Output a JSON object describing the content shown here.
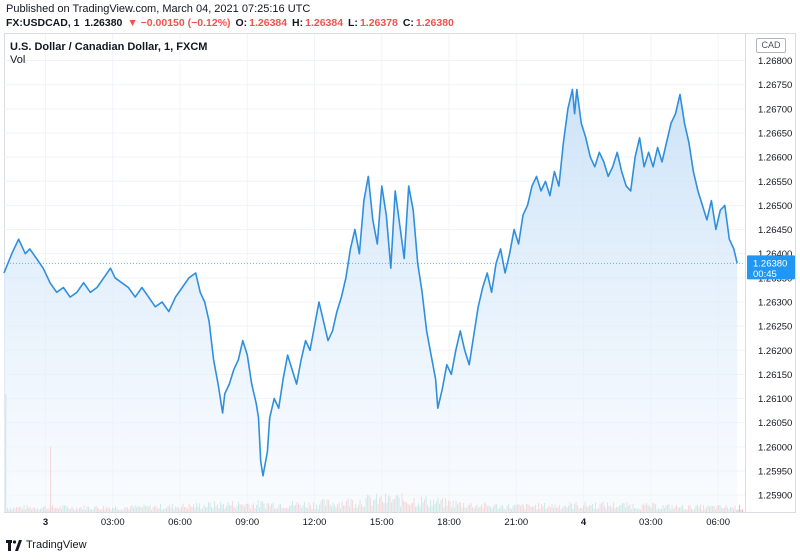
{
  "published": "Published on TradingView.com, March 04, 2021 07:25:16 UTC",
  "header": {
    "symbol": "FX:USDCAD, 1",
    "last": "1.26380",
    "change": "▼ −0.00150 (−0.12%)",
    "o_label": "O:",
    "o": "1.26384",
    "h_label": "H:",
    "h": "1.26384",
    "l_label": "L:",
    "l": "1.26378",
    "c_label": "C:",
    "c": "1.26380"
  },
  "chart": {
    "title": "U.S. Dollar / Canadian Dollar, 1, FXCM",
    "vol_label": "Vol",
    "currency": "CAD",
    "price_badge": "1.26380",
    "countdown": "00:45"
  },
  "footer": {
    "brand": "TradingView"
  },
  "colors": {
    "line": "#2f8fdf",
    "area_top": "#c7e0f7",
    "area_bottom": "#f3f8fe",
    "badge": "#2196f3",
    "vol_up": "#8ecfc6",
    "vol_down": "#f1a7a3",
    "negative": "#ef5350"
  },
  "chart_data": {
    "type": "area",
    "title": "U.S. Dollar / Canadian Dollar, 1, FXCM",
    "y_axis": {
      "ticks": [
        1.259,
        1.2595,
        1.26,
        1.2605,
        1.261,
        1.2615,
        1.262,
        1.2625,
        1.263,
        1.2635,
        1.264,
        1.2645,
        1.265,
        1.2655,
        1.266,
        1.2665,
        1.267,
        1.2675,
        1.268
      ],
      "tick_labels": [
        "1.25900",
        "1.25950",
        "1.26000",
        "1.26050",
        "1.26100",
        "1.26150",
        "1.26200",
        "1.26250",
        "1.26300",
        "1.26350",
        "1.26400",
        "1.26450",
        "1.26500",
        "1.26550",
        "1.26600",
        "1.26650",
        "1.26700",
        "1.26750",
        "1.26800"
      ],
      "range": [
        1.25865,
        1.26855
      ]
    },
    "x_axis": {
      "tick_labels": [
        "3",
        "03:00",
        "06:00",
        "09:00",
        "12:00",
        "15:00",
        "18:00",
        "21:00",
        "4",
        "03:00",
        "06:00"
      ],
      "tick_hours": [
        0,
        3,
        6,
        9,
        12,
        15,
        18,
        21,
        24,
        27,
        30
      ],
      "range_hours": [
        -1.85,
        31.2
      ]
    },
    "series": [
      {
        "values": [
          [
            -1.85,
            1.2636
          ],
          [
            -1.5,
            1.264
          ],
          [
            -1.2,
            1.2643
          ],
          [
            -0.9,
            1.264
          ],
          [
            -0.7,
            1.2641
          ],
          [
            -0.4,
            1.2639
          ],
          [
            -0.1,
            1.2637
          ],
          [
            0.2,
            1.2634
          ],
          [
            0.5,
            1.2632
          ],
          [
            0.8,
            1.2633
          ],
          [
            1.1,
            1.2631
          ],
          [
            1.4,
            1.2632
          ],
          [
            1.7,
            1.2634
          ],
          [
            2.0,
            1.2632
          ],
          [
            2.3,
            1.2633
          ],
          [
            2.6,
            1.2635
          ],
          [
            2.9,
            1.2637
          ],
          [
            3.1,
            1.2635
          ],
          [
            3.4,
            1.2634
          ],
          [
            3.7,
            1.2633
          ],
          [
            4.0,
            1.2631
          ],
          [
            4.3,
            1.2633
          ],
          [
            4.6,
            1.2631
          ],
          [
            4.9,
            1.2629
          ],
          [
            5.2,
            1.263
          ],
          [
            5.5,
            1.2628
          ],
          [
            5.8,
            1.2631
          ],
          [
            6.1,
            1.2633
          ],
          [
            6.4,
            1.2635
          ],
          [
            6.7,
            1.2636
          ],
          [
            6.9,
            1.2632
          ],
          [
            7.1,
            1.263
          ],
          [
            7.3,
            1.2626
          ],
          [
            7.5,
            1.2618
          ],
          [
            7.7,
            1.2613
          ],
          [
            7.9,
            1.2607
          ],
          [
            8.0,
            1.2611
          ],
          [
            8.2,
            1.2613
          ],
          [
            8.4,
            1.2616
          ],
          [
            8.6,
            1.2618
          ],
          [
            8.8,
            1.2622
          ],
          [
            9.0,
            1.2619
          ],
          [
            9.2,
            1.2613
          ],
          [
            9.4,
            1.2609
          ],
          [
            9.5,
            1.2606
          ],
          [
            9.6,
            1.2597
          ],
          [
            9.7,
            1.2594
          ],
          [
            9.9,
            1.2599
          ],
          [
            10.0,
            1.2606
          ],
          [
            10.2,
            1.261
          ],
          [
            10.4,
            1.2608
          ],
          [
            10.6,
            1.2614
          ],
          [
            10.8,
            1.2619
          ],
          [
            11.0,
            1.2616
          ],
          [
            11.2,
            1.2613
          ],
          [
            11.4,
            1.2618
          ],
          [
            11.6,
            1.2622
          ],
          [
            11.8,
            1.262
          ],
          [
            12.0,
            1.2625
          ],
          [
            12.2,
            1.263
          ],
          [
            12.4,
            1.2626
          ],
          [
            12.6,
            1.2622
          ],
          [
            12.8,
            1.2624
          ],
          [
            13.0,
            1.2628
          ],
          [
            13.2,
            1.2631
          ],
          [
            13.4,
            1.2635
          ],
          [
            13.6,
            1.2641
          ],
          [
            13.8,
            1.2645
          ],
          [
            14.0,
            1.264
          ],
          [
            14.2,
            1.2651
          ],
          [
            14.4,
            1.2656
          ],
          [
            14.6,
            1.2647
          ],
          [
            14.8,
            1.2642
          ],
          [
            15.0,
            1.2654
          ],
          [
            15.2,
            1.2648
          ],
          [
            15.4,
            1.2637
          ],
          [
            15.6,
            1.2653
          ],
          [
            15.8,
            1.2646
          ],
          [
            16.0,
            1.2639
          ],
          [
            16.2,
            1.2654
          ],
          [
            16.4,
            1.2649
          ],
          [
            16.6,
            1.2638
          ],
          [
            16.8,
            1.2632
          ],
          [
            17.0,
            1.2624
          ],
          [
            17.2,
            1.2619
          ],
          [
            17.4,
            1.2614
          ],
          [
            17.5,
            1.2608
          ],
          [
            17.7,
            1.2612
          ],
          [
            17.9,
            1.2617
          ],
          [
            18.1,
            1.2615
          ],
          [
            18.3,
            1.262
          ],
          [
            18.5,
            1.2624
          ],
          [
            18.7,
            1.262
          ],
          [
            18.9,
            1.2617
          ],
          [
            19.1,
            1.2623
          ],
          [
            19.3,
            1.2629
          ],
          [
            19.5,
            1.2633
          ],
          [
            19.7,
            1.2636
          ],
          [
            19.9,
            1.2632
          ],
          [
            20.1,
            1.2638
          ],
          [
            20.3,
            1.2641
          ],
          [
            20.5,
            1.2636
          ],
          [
            20.7,
            1.264
          ],
          [
            20.9,
            1.2645
          ],
          [
            21.1,
            1.2642
          ],
          [
            21.3,
            1.2648
          ],
          [
            21.5,
            1.265
          ],
          [
            21.7,
            1.2654
          ],
          [
            21.9,
            1.2656
          ],
          [
            22.1,
            1.2653
          ],
          [
            22.3,
            1.2655
          ],
          [
            22.5,
            1.2652
          ],
          [
            22.7,
            1.2657
          ],
          [
            22.9,
            1.2654
          ],
          [
            23.1,
            1.2663
          ],
          [
            23.3,
            1.267
          ],
          [
            23.5,
            1.2674
          ],
          [
            23.6,
            1.2669
          ],
          [
            23.7,
            1.2674
          ],
          [
            23.9,
            1.2667
          ],
          [
            24.1,
            1.2664
          ],
          [
            24.3,
            1.266
          ],
          [
            24.5,
            1.2658
          ],
          [
            24.7,
            1.2661
          ],
          [
            24.9,
            1.2659
          ],
          [
            25.1,
            1.2656
          ],
          [
            25.3,
            1.2658
          ],
          [
            25.5,
            1.2661
          ],
          [
            25.7,
            1.2657
          ],
          [
            25.9,
            1.2654
          ],
          [
            26.1,
            1.2653
          ],
          [
            26.3,
            1.266
          ],
          [
            26.5,
            1.2664
          ],
          [
            26.7,
            1.2658
          ],
          [
            26.9,
            1.2661
          ],
          [
            27.1,
            1.2658
          ],
          [
            27.3,
            1.2662
          ],
          [
            27.5,
            1.2659
          ],
          [
            27.7,
            1.2663
          ],
          [
            27.9,
            1.2667
          ],
          [
            28.1,
            1.2669
          ],
          [
            28.3,
            1.2673
          ],
          [
            28.5,
            1.2667
          ],
          [
            28.7,
            1.2663
          ],
          [
            28.9,
            1.2657
          ],
          [
            29.1,
            1.2653
          ],
          [
            29.3,
            1.265
          ],
          [
            29.5,
            1.2647
          ],
          [
            29.7,
            1.2651
          ],
          [
            29.9,
            1.2645
          ],
          [
            30.1,
            1.2649
          ],
          [
            30.3,
            1.265
          ],
          [
            30.5,
            1.2643
          ],
          [
            30.7,
            1.2641
          ],
          [
            30.85,
            1.2638
          ]
        ]
      }
    ],
    "volume_note": "intraday volume histogram shown along bottom",
    "grid": true,
    "last_value": 1.2638
  }
}
